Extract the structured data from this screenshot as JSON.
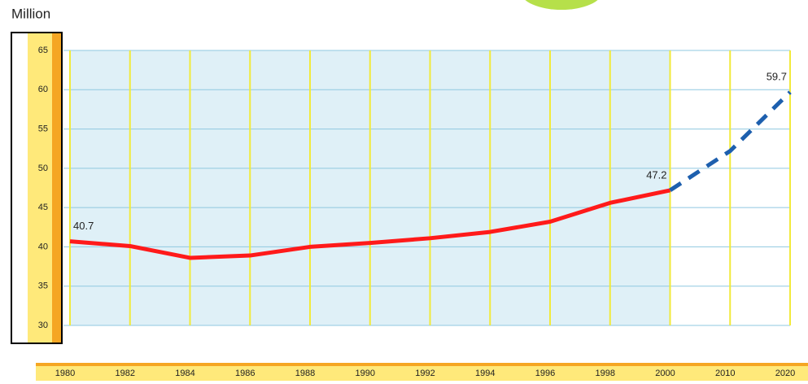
{
  "chart_data": {
    "type": "line",
    "y_label": "Million",
    "categories": [
      "1980",
      "1982",
      "1984",
      "1986",
      "1988",
      "1990",
      "1992",
      "1994",
      "1996",
      "1998",
      "2000",
      "2010",
      "2020"
    ],
    "series": [
      {
        "color": "#ff1a1a",
        "style": "solid",
        "values": [
          40.7,
          40.1,
          38.6,
          38.9,
          40.0,
          40.5,
          41.1,
          41.9,
          43.2,
          45.6,
          47.2,
          null,
          null
        ]
      },
      {
        "color": "#1d5fae",
        "style": "dashed",
        "values": [
          null,
          null,
          null,
          null,
          null,
          null,
          null,
          null,
          null,
          null,
          47.2,
          52.2,
          59.7
        ]
      }
    ],
    "ylim": [
      30,
      65
    ],
    "yticks": [
      30,
      35,
      40,
      45,
      50,
      55,
      60,
      65
    ],
    "grid": true
  }
}
